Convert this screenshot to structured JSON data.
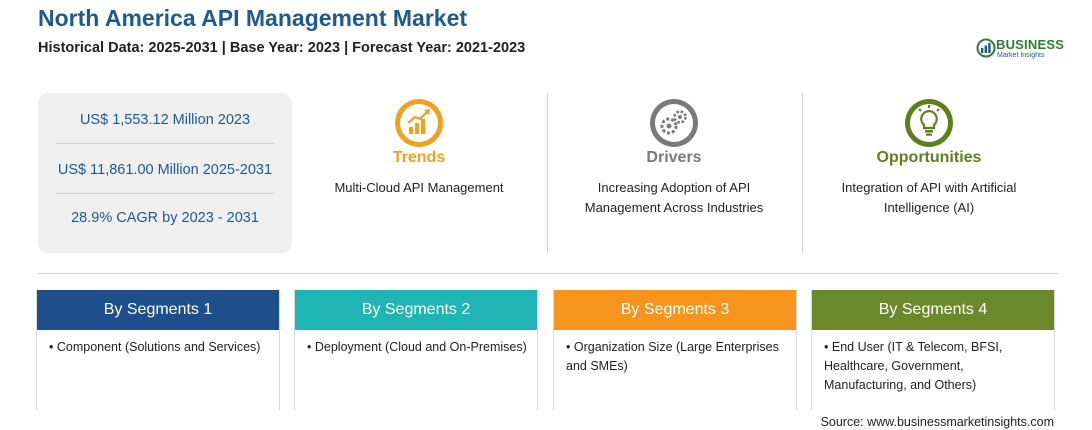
{
  "header": {
    "title": "North America API Management Market",
    "subtitle": "Historical Data: 2025-2031 | Base Year: 2023 | Forecast Year: 2021-2023"
  },
  "logo": {
    "word": "BUSINESS",
    "sub": "Market Insights"
  },
  "stats": [
    "US$ 1,553.12 Million 2023",
    "US$ 11,861.00 Million 2025-2031",
    "28.9% CAGR by 2023 - 2031"
  ],
  "features": [
    {
      "heading": "Trends",
      "text": "Multi-Cloud API Management",
      "color": "#f2a11f",
      "icon": "chart-growth-icon"
    },
    {
      "heading": "Drivers",
      "text": "Increasing Adoption of API Management Across Industries",
      "color": "#7a7a7a",
      "icon": "gears-icon"
    },
    {
      "heading": "Opportunities",
      "text": "Integration of API with Artificial Intelligence (AI)",
      "color": "#5d7f1e",
      "icon": "lightbulb-icon"
    }
  ],
  "segments": [
    {
      "heading": "By Segments 1",
      "color": "#1f4e8c",
      "items": [
        "Component (Solutions and Services)"
      ]
    },
    {
      "heading": "By Segments 2",
      "color": "#1fb5b5",
      "items": [
        "Deployment (Cloud and On-Premises)"
      ]
    },
    {
      "heading": "By Segments 3",
      "color": "#f7941d",
      "items": [
        "Organization Size (Large Enterprises and SMEs)"
      ]
    },
    {
      "heading": "By Segments 4",
      "color": "#6a8a2a",
      "items": [
        "End User (IT & Telecom, BFSI, Healthcare, Government, Manufacturing, and Others)"
      ]
    }
  ],
  "footer": {
    "source": "Source: www.businessmarketinsights.com"
  }
}
